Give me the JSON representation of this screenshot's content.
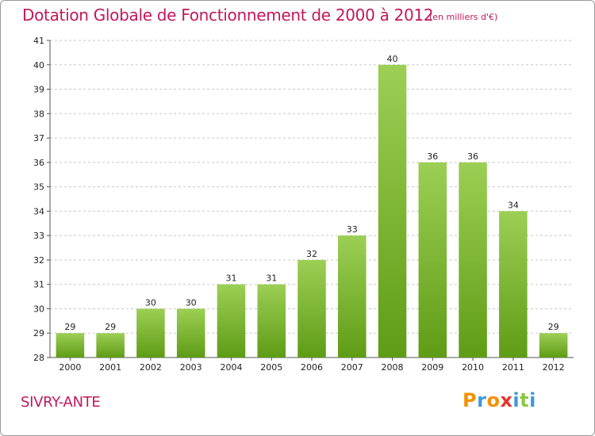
{
  "title": "Dotation Globale de Fonctionnement de 2000 à 2012",
  "unit_note": "(en milliers d'€)",
  "commune": "SIVRY-ANTE",
  "brand": {
    "letters": [
      "P",
      "r",
      "o",
      "x",
      "i",
      "t",
      "i"
    ],
    "colors": [
      "#f39200",
      "#3d9ad6",
      "#f39200",
      "#e6332a",
      "#3d9ad6",
      "#8cc63f",
      "#3d9ad6"
    ]
  },
  "colors": {
    "accent": "#c2185b",
    "bar_top": "#9ccf55",
    "bar_bottom": "#5f9c15",
    "grid": "#c8c8c8"
  },
  "chart_data": {
    "type": "bar",
    "title": "Dotation Globale de Fonctionnement de 2000 à 2012",
    "subtitle": "(en milliers d'€)",
    "categories": [
      "2000",
      "2001",
      "2002",
      "2003",
      "2004",
      "2005",
      "2006",
      "2007",
      "2008",
      "2009",
      "2010",
      "2011",
      "2012"
    ],
    "values": [
      29,
      29,
      30,
      30,
      31,
      31,
      32,
      33,
      40,
      36,
      36,
      34,
      29
    ],
    "ylim": [
      28,
      41
    ],
    "yticks": [
      28,
      29,
      30,
      31,
      32,
      33,
      34,
      35,
      36,
      37,
      38,
      39,
      40,
      41
    ],
    "xlabel": "",
    "ylabel": "",
    "grid": true,
    "data_labels": true
  }
}
